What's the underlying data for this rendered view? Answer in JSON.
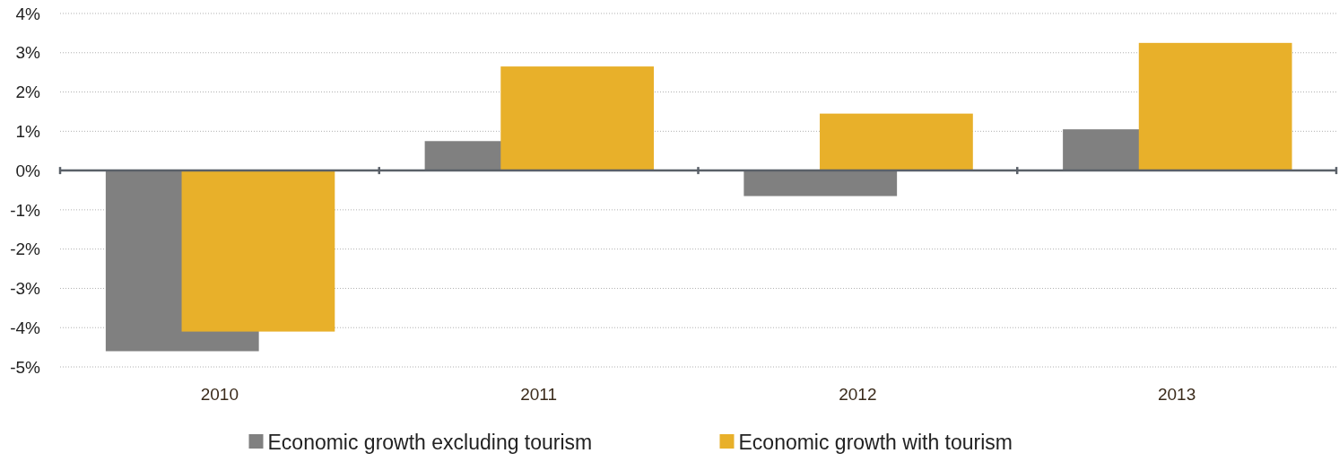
{
  "chart_data": {
    "type": "bar",
    "categories": [
      "2010",
      "2011",
      "2012",
      "2013"
    ],
    "series": [
      {
        "name": "Economic growth excluding tourism",
        "color": "#808080",
        "values": [
          -4.6,
          0.75,
          -0.65,
          1.05
        ]
      },
      {
        "name": "Economic growth with tourism",
        "color": "#e8b02a",
        "values": [
          -4.1,
          2.65,
          1.45,
          3.25
        ]
      }
    ],
    "ylim": [
      -5,
      4
    ],
    "yticks": [
      {
        "value": -5,
        "label": "-5%"
      },
      {
        "value": -4,
        "label": "-4%"
      },
      {
        "value": -3,
        "label": "-3%"
      },
      {
        "value": -2,
        "label": "-2%"
      },
      {
        "value": -1,
        "label": "-1%"
      },
      {
        "value": 0,
        "label": "0%"
      },
      {
        "value": 1,
        "label": "1%"
      },
      {
        "value": 2,
        "label": "2%"
      },
      {
        "value": 3,
        "label": "3%"
      },
      {
        "value": 4,
        "label": "4%"
      }
    ],
    "grid": "y",
    "legend": "bottom"
  }
}
